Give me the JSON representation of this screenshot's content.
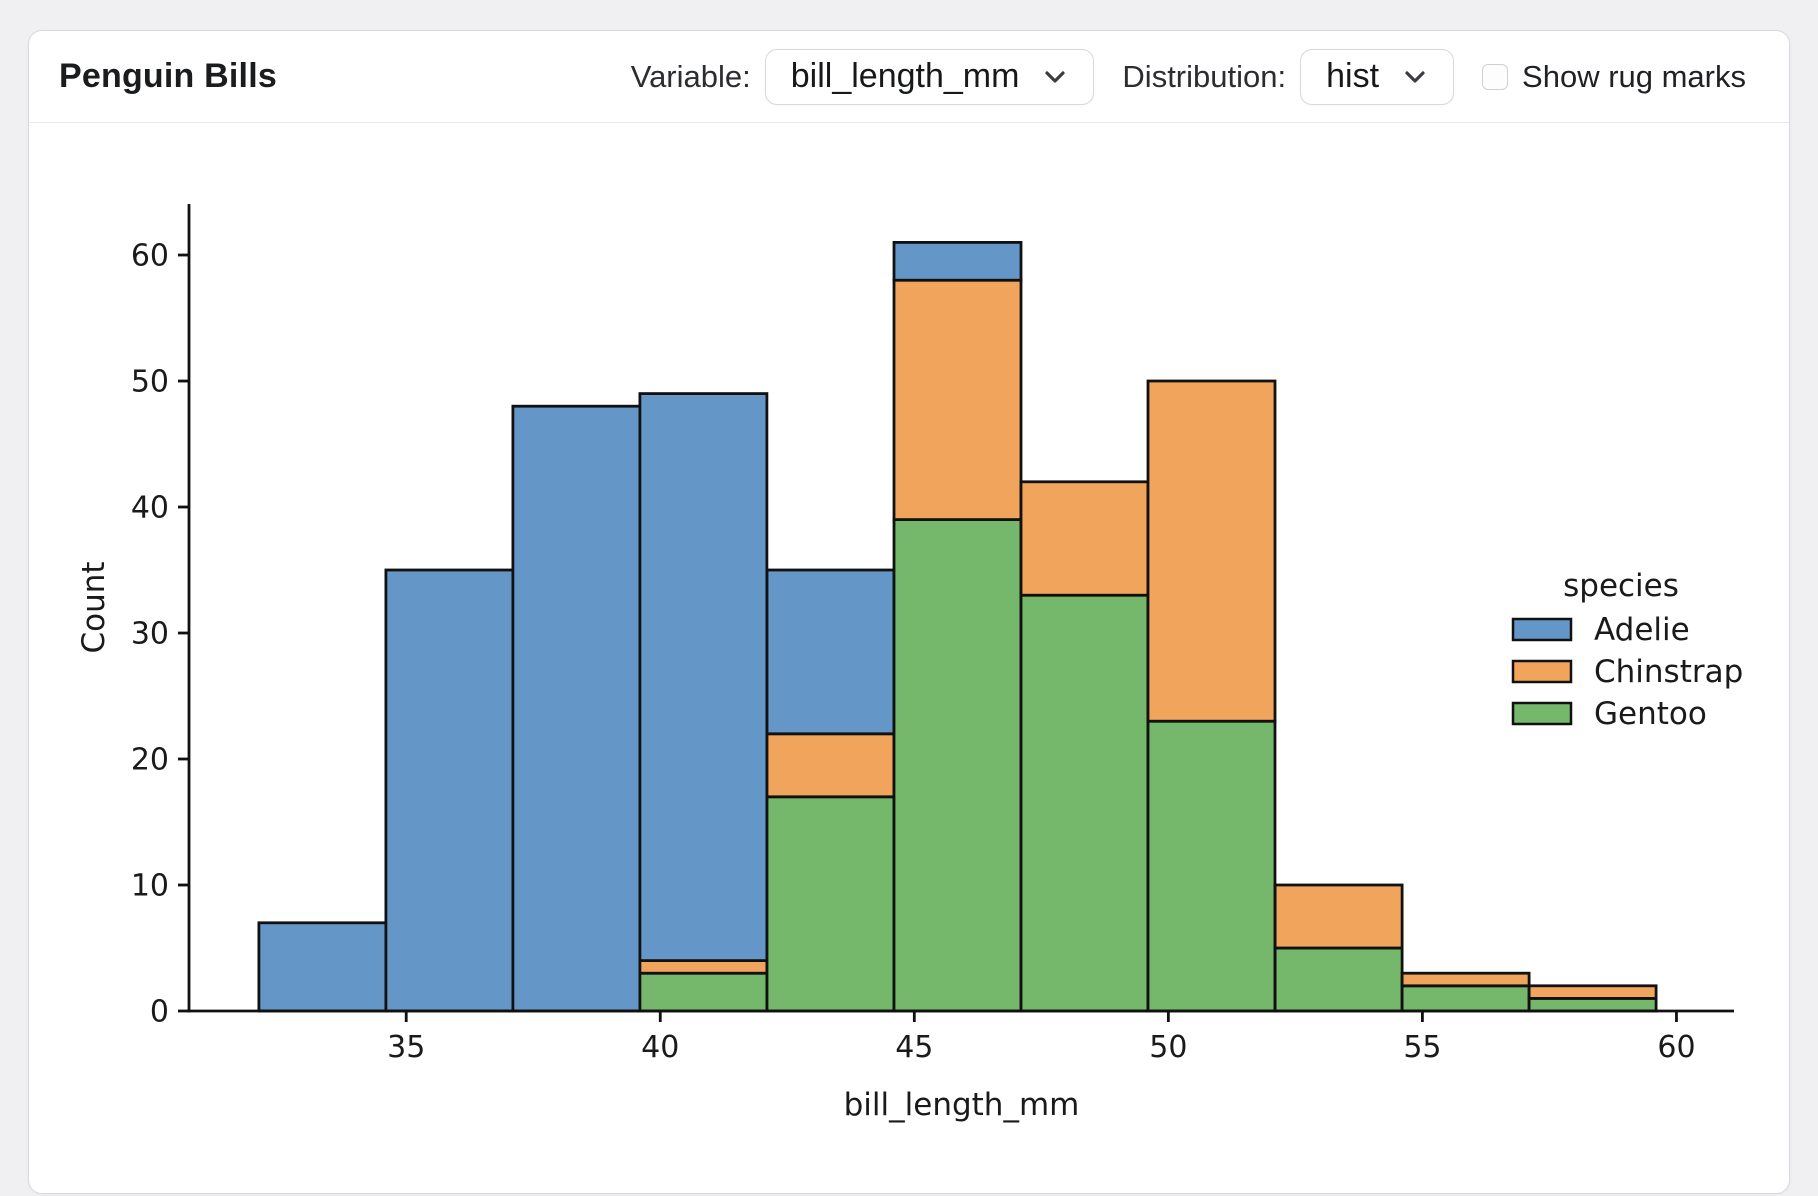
{
  "header": {
    "title": "Penguin Bills",
    "variable_label": "Variable:",
    "variable_value": "bill_length_mm",
    "distribution_label": "Distribution:",
    "distribution_value": "hist",
    "rug_label": "Show rug marks",
    "rug_checked": false
  },
  "colors": {
    "adelie": "#6497C7",
    "chinstrap": "#F0A45C",
    "gentoo": "#75B76B",
    "bar_edge": "#111111",
    "axis": "#111111",
    "text": "#1a1a1a"
  },
  "chart_data": {
    "type": "bar",
    "subtype": "stacked_histogram",
    "title": "",
    "xlabel": "bill_length_mm",
    "ylabel": "Count",
    "bin_edges": [
      32.1,
      34.6,
      37.1,
      39.6,
      42.1,
      44.6,
      47.1,
      49.6,
      52.1,
      54.6,
      57.1,
      59.6
    ],
    "series": [
      {
        "name": "Adelie",
        "color": "#6497C7",
        "values": [
          7,
          35,
          48,
          45,
          13,
          3,
          0,
          0,
          0,
          0,
          0
        ]
      },
      {
        "name": "Chinstrap",
        "color": "#F0A45C",
        "values": [
          0,
          0,
          0,
          1,
          5,
          19,
          9,
          27,
          5,
          1,
          1
        ]
      },
      {
        "name": "Gentoo",
        "color": "#75B76B",
        "values": [
          0,
          0,
          0,
          3,
          17,
          39,
          33,
          23,
          5,
          2,
          1
        ]
      }
    ],
    "bin_totals": [
      7,
      35,
      48,
      49,
      35,
      61,
      42,
      50,
      10,
      3,
      2
    ],
    "stack_order_bottom_to_top": [
      "Gentoo",
      "Chinstrap",
      "Adelie"
    ],
    "xticks": [
      35,
      40,
      45,
      50,
      55,
      60
    ],
    "yticks": [
      0,
      10,
      20,
      30,
      40,
      50,
      60
    ],
    "xlim": [
      30.725,
      60.975
    ],
    "ylim": [
      0,
      64.05
    ],
    "grid": false,
    "legend_title": "species",
    "legend_entries": [
      "Adelie",
      "Chinstrap",
      "Gentoo"
    ],
    "legend_position": "center-right"
  }
}
